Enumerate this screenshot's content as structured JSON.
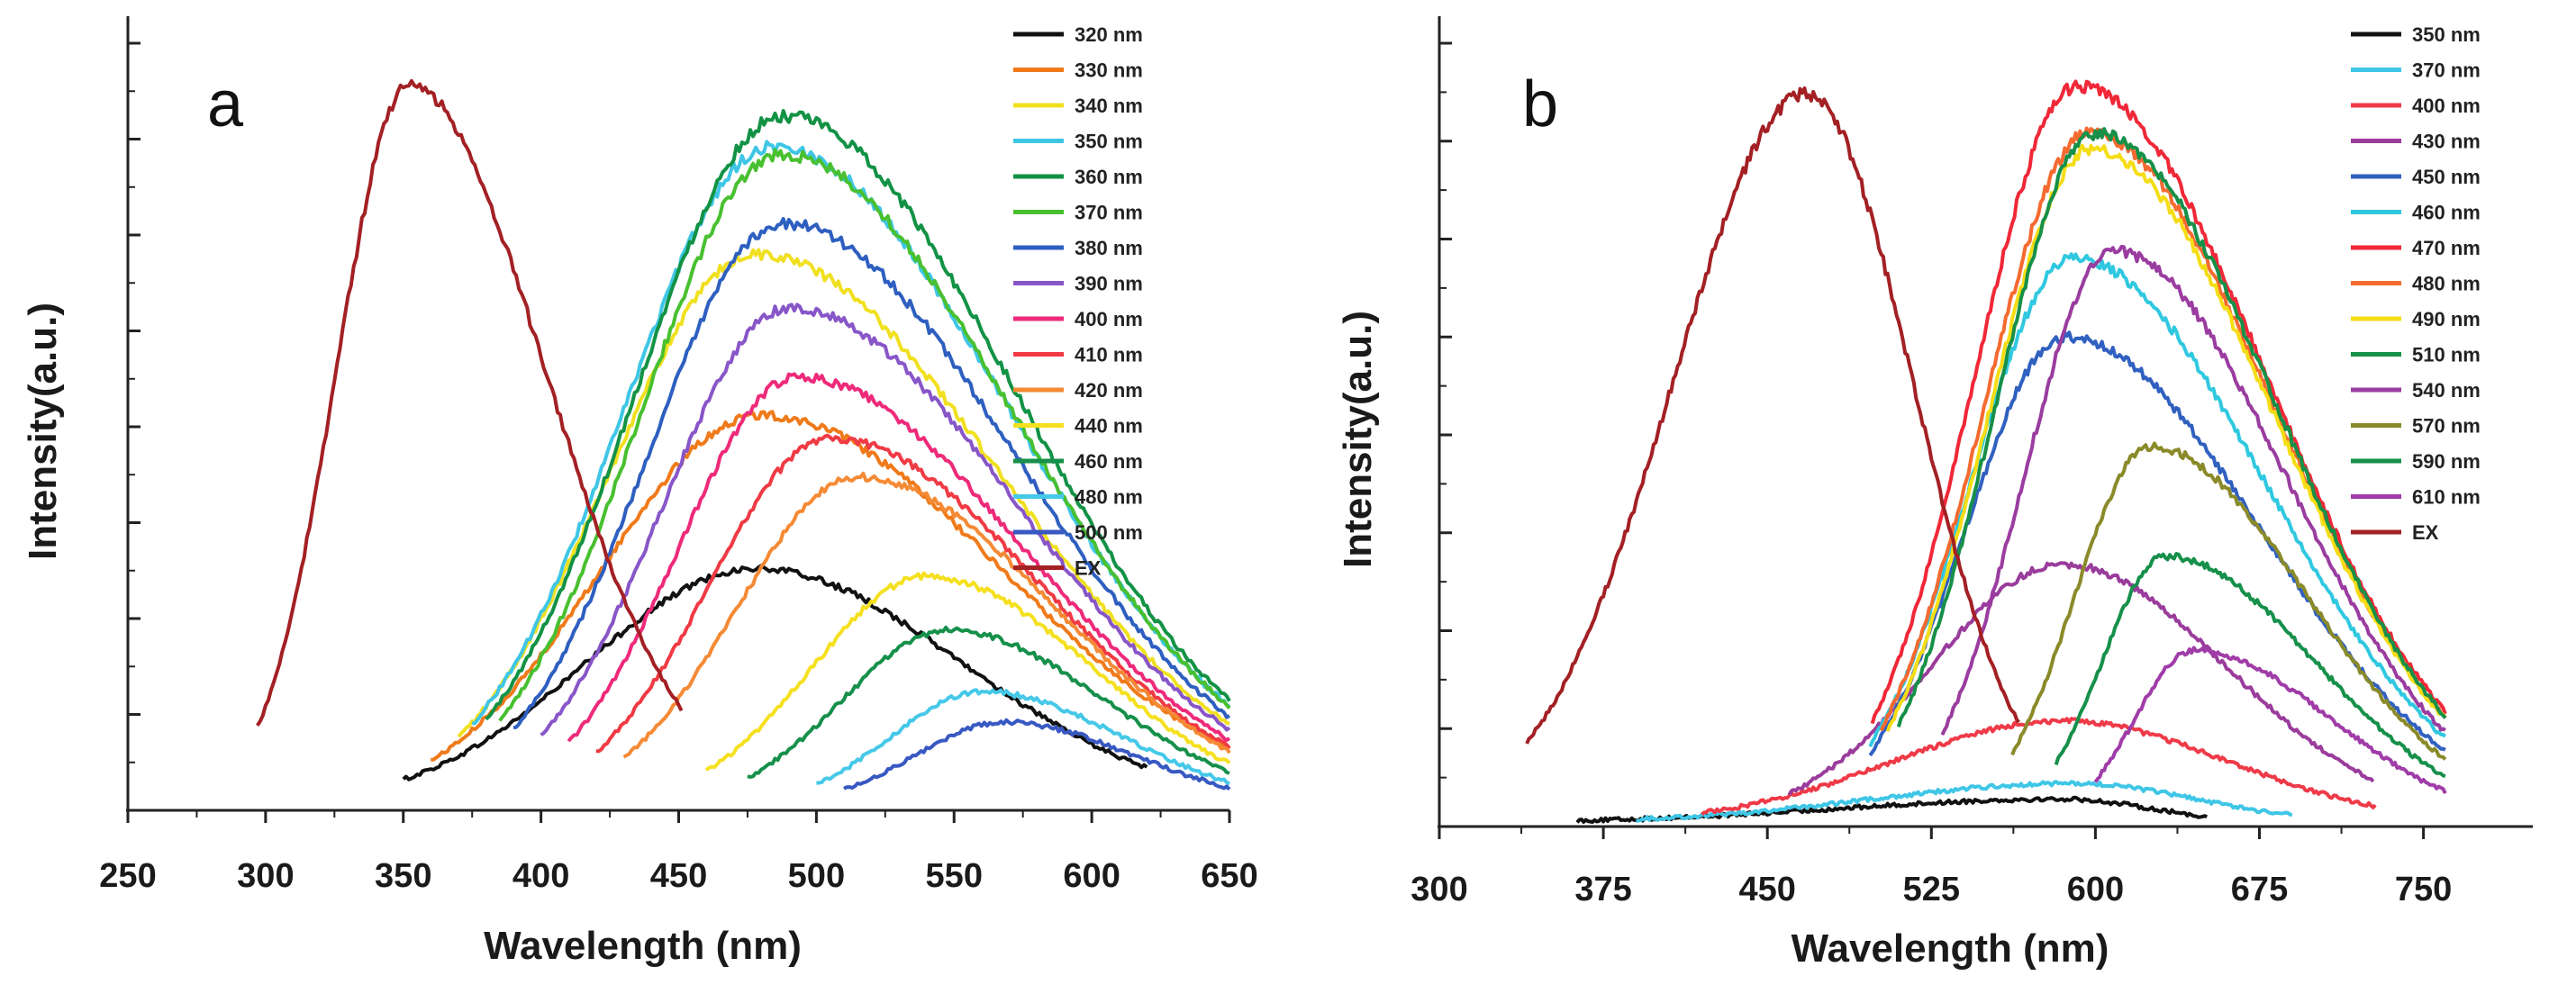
{
  "chart_data": [
    {
      "type": "line",
      "panel_label": "a",
      "xlabel": "Wavelength (nm)",
      "ylabel": "Intensity(a.u.)",
      "xlim": [
        250,
        650
      ],
      "ylim": [
        0,
        1
      ],
      "xticks": [
        250,
        300,
        350,
        400,
        450,
        500,
        550,
        600,
        650
      ],
      "ytick_labels": false,
      "legend_position": "top-right",
      "series": [
        {
          "name": "320 nm",
          "color": "#111111",
          "start": 350,
          "end": 620,
          "peak": 478,
          "amp": 0.31
        },
        {
          "name": "330 nm",
          "color": "#f07a1a",
          "start": 360,
          "end": 650,
          "peak": 480,
          "amp": 0.51
        },
        {
          "name": "340 nm",
          "color": "#f0e020",
          "start": 370,
          "end": 650,
          "peak": 478,
          "amp": 0.72
        },
        {
          "name": "350 nm",
          "color": "#3fc6e6",
          "start": 375,
          "end": 650,
          "peak": 484,
          "amp": 0.86
        },
        {
          "name": "360 nm",
          "color": "#129245",
          "start": 380,
          "end": 650,
          "peak": 488,
          "amp": 0.9
        },
        {
          "name": "370 nm",
          "color": "#48c030",
          "start": 385,
          "end": 650,
          "peak": 487,
          "amp": 0.85
        },
        {
          "name": "380 nm",
          "color": "#2e5fc0",
          "start": 390,
          "end": 650,
          "peak": 488,
          "amp": 0.76
        },
        {
          "name": "390 nm",
          "color": "#8856c8",
          "start": 400,
          "end": 650,
          "peak": 490,
          "amp": 0.65
        },
        {
          "name": "400 nm",
          "color": "#ee2a7a",
          "start": 410,
          "end": 650,
          "peak": 493,
          "amp": 0.56
        },
        {
          "name": "410 nm",
          "color": "#f03a44",
          "start": 420,
          "end": 650,
          "peak": 505,
          "amp": 0.48
        },
        {
          "name": "420 nm",
          "color": "#f58a35",
          "start": 430,
          "end": 650,
          "peak": 515,
          "amp": 0.43
        },
        {
          "name": "440 nm",
          "color": "#f5e020",
          "start": 460,
          "end": 650,
          "peak": 540,
          "amp": 0.3
        },
        {
          "name": "460 nm",
          "color": "#16904a",
          "start": 475,
          "end": 650,
          "peak": 548,
          "amp": 0.23
        },
        {
          "name": "480 nm",
          "color": "#46c8e8",
          "start": 500,
          "end": 650,
          "peak": 560,
          "amp": 0.15
        },
        {
          "name": "500 nm",
          "color": "#3858c2",
          "start": 510,
          "end": 650,
          "peak": 568,
          "amp": 0.11
        },
        {
          "name": "EX",
          "color": "#a32024",
          "start": 297,
          "end": 451,
          "peak": 352,
          "amp": 0.94
        }
      ]
    },
    {
      "type": "line",
      "panel_label": "b",
      "xlabel": "Wavelength (nm)",
      "ylabel": "Intensity(a.u.)",
      "xlim": [
        300,
        800
      ],
      "ylim": [
        0,
        1
      ],
      "xticks": [
        300,
        375,
        450,
        525,
        600,
        675,
        750
      ],
      "ytick_labels": false,
      "legend_position": "top-right",
      "series": [
        {
          "name": "350 nm",
          "color": "#111111",
          "start": 363,
          "end": 651,
          "peak": 585,
          "amp": 0.03
        },
        {
          "name": "370 nm",
          "color": "#3fc6e6",
          "start": 390,
          "end": 690,
          "peak": 590,
          "amp": 0.05
        },
        {
          "name": "400 nm",
          "color": "#ef3a48",
          "start": 420,
          "end": 728,
          "peak": 585,
          "amp": 0.13
        },
        {
          "name": "430 nm",
          "color": "#9a3c9c",
          "start": 460,
          "end": 727,
          "peak": 585,
          "amp": 0.33
        },
        {
          "name": "450 nm",
          "color": "#3060c0",
          "start": 497,
          "end": 760,
          "peak": 586,
          "amp": 0.62
        },
        {
          "name": "460 nm",
          "color": "#30c8e0",
          "start": 497,
          "end": 760,
          "peak": 590,
          "amp": 0.72
        },
        {
          "name": "470 nm",
          "color": "#f02838",
          "start": 498,
          "end": 760,
          "peak": 592,
          "amp": 0.94
        },
        {
          "name": "480 nm",
          "color": "#f56a30",
          "start": 502,
          "end": 760,
          "peak": 597,
          "amp": 0.88
        },
        {
          "name": "490 nm",
          "color": "#f5dd15",
          "start": 505,
          "end": 760,
          "peak": 598,
          "amp": 0.86
        },
        {
          "name": "510 nm",
          "color": "#169048",
          "start": 510,
          "end": 760,
          "peak": 600,
          "amp": 0.88
        },
        {
          "name": "540 nm",
          "color": "#9a3ca0",
          "start": 530,
          "end": 760,
          "peak": 608,
          "amp": 0.73
        },
        {
          "name": "570 nm",
          "color": "#8a8a2a",
          "start": 562,
          "end": 760,
          "peak": 625,
          "amp": 0.48
        },
        {
          "name": "590 nm",
          "color": "#16904a",
          "start": 582,
          "end": 760,
          "peak": 632,
          "amp": 0.34
        },
        {
          "name": "610 nm",
          "color": "#a03ca8",
          "start": 600,
          "end": 760,
          "peak": 645,
          "amp": 0.22
        },
        {
          "name": "EX",
          "color": "#a32024",
          "start": 340,
          "end": 565,
          "peak": 468,
          "amp": 0.93
        }
      ]
    }
  ]
}
